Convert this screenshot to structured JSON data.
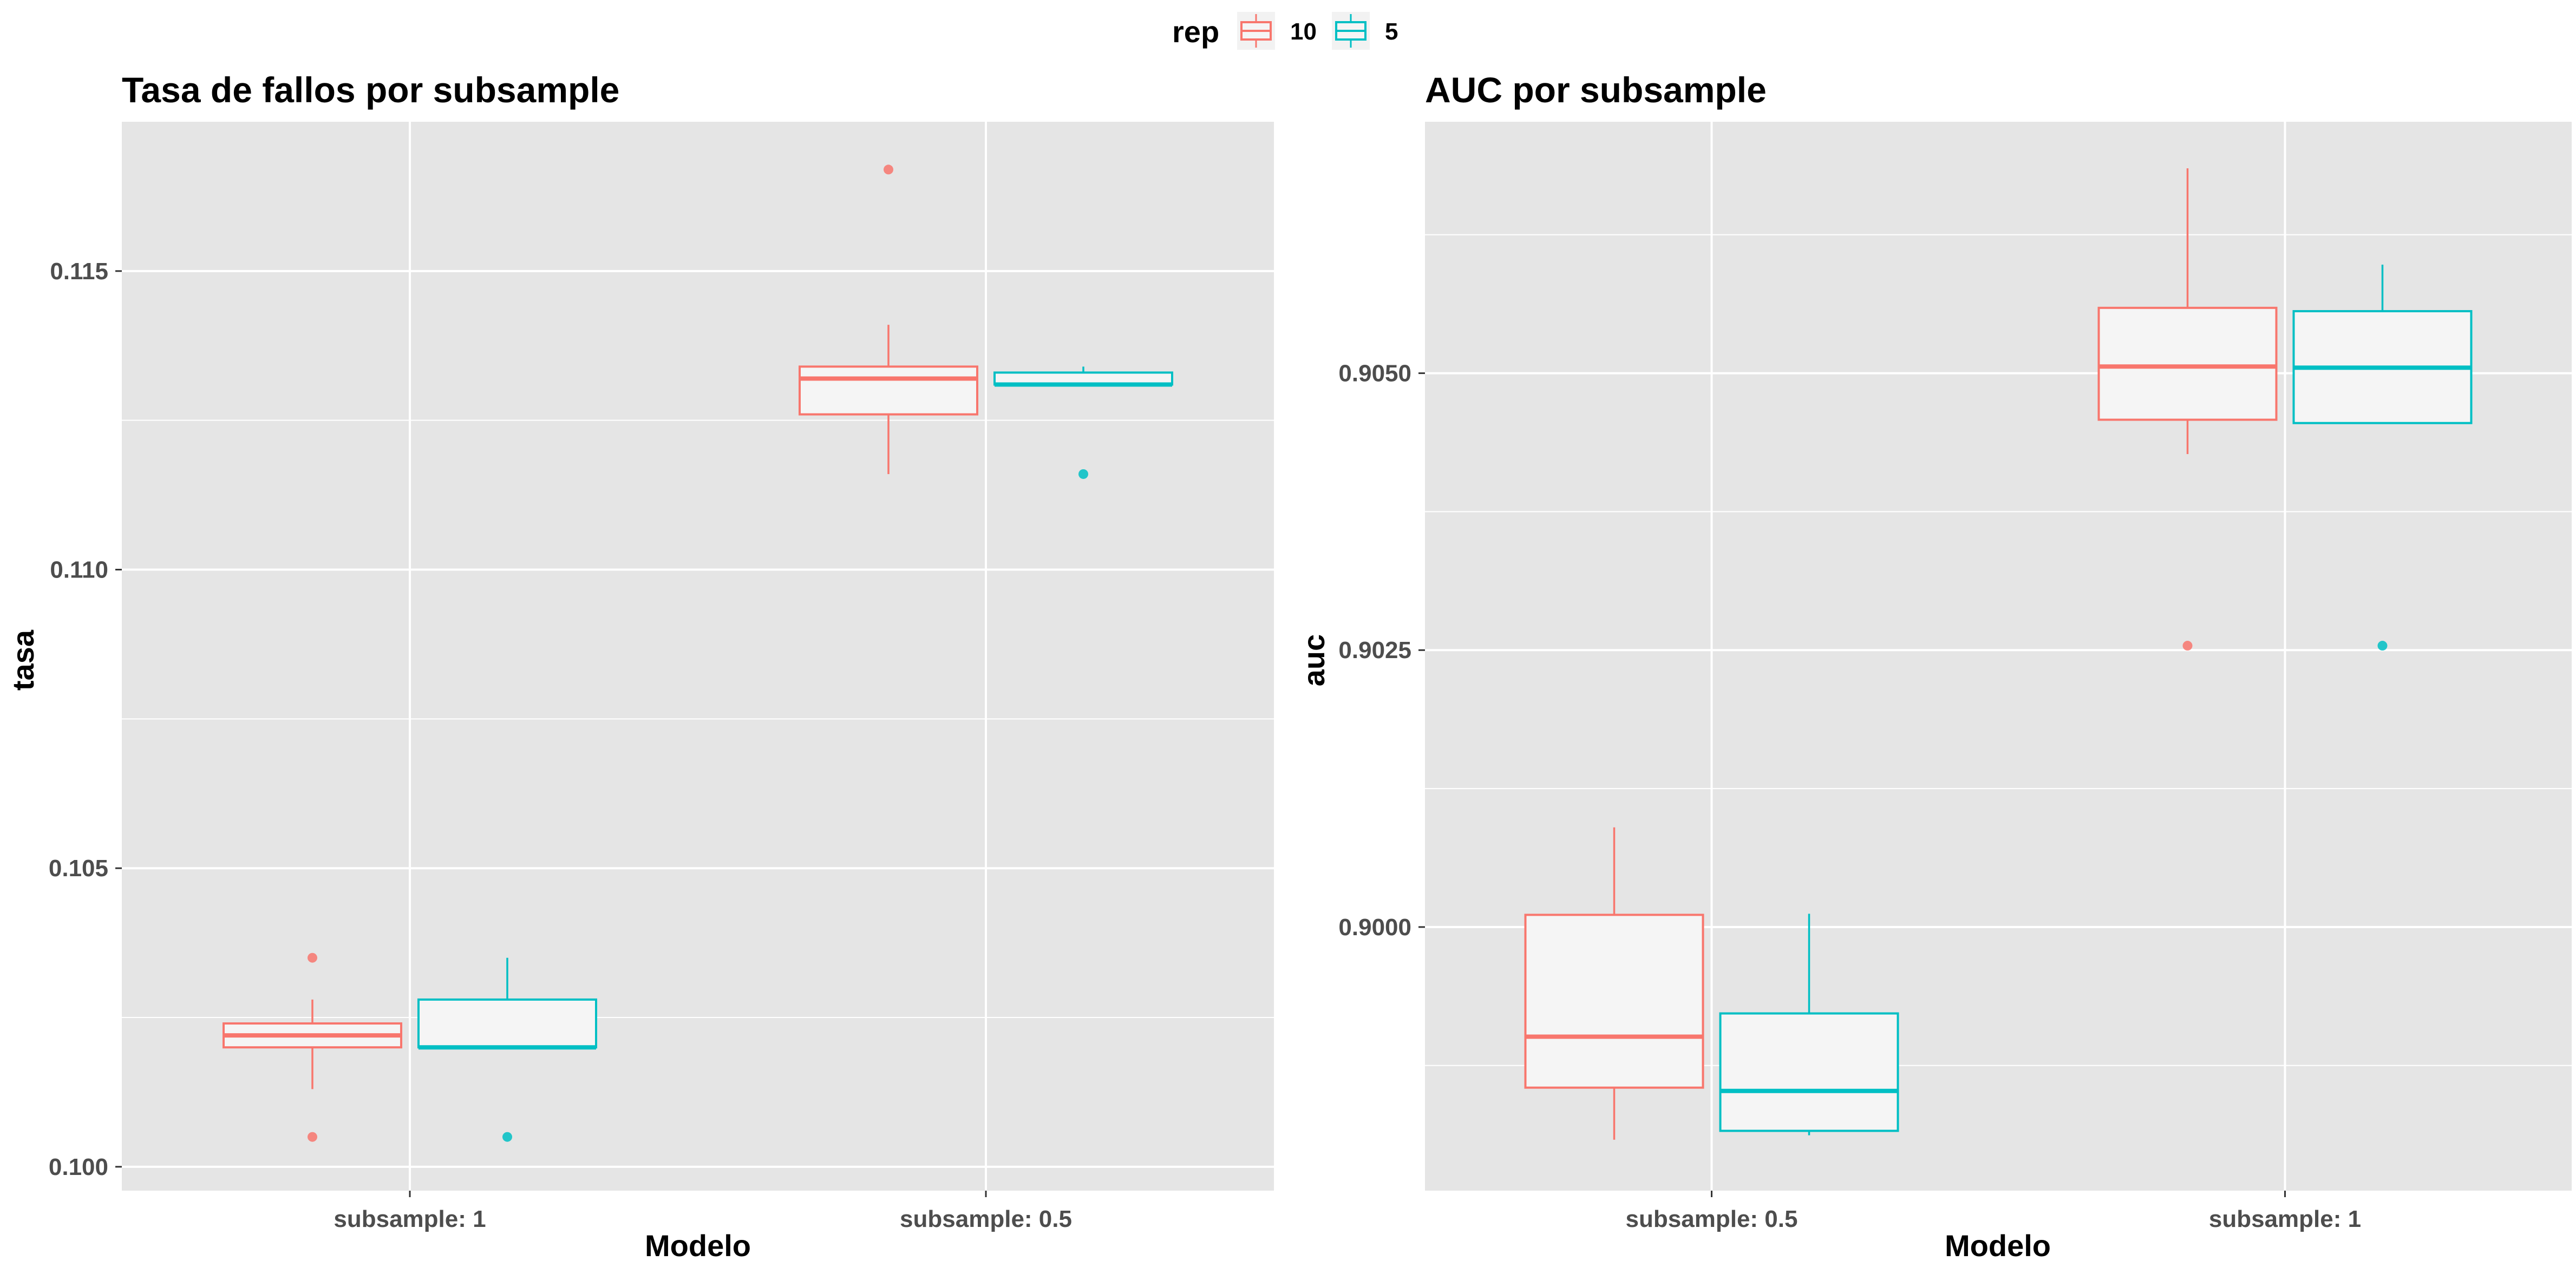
{
  "legend": {
    "title": "rep",
    "entries": [
      {
        "label": "10",
        "color": "#F8766D"
      },
      {
        "label": "5",
        "color": "#00BFC4"
      }
    ],
    "placement": "top-center"
  },
  "colors": {
    "panel_bg": "#E5E5E5",
    "grid": "#FFFFFF",
    "box_fill": "#F5F5F5",
    "tick_text": "#4D4D4D"
  },
  "chart_data": [
    {
      "type": "boxplot",
      "title": "Tasa de fallos por subsample",
      "xlabel": "Modelo",
      "ylabel": "tasa",
      "categories": [
        "subsample: 1",
        "subsample: 0.5"
      ],
      "ylim": [
        0.0996,
        0.1175
      ],
      "yticks": [
        0.1,
        0.105,
        0.11,
        0.115
      ],
      "ytick_labels": [
        "0.100",
        "0.105",
        "0.110",
        "0.115"
      ],
      "grid": true,
      "series": [
        {
          "name": "10",
          "color": "#F8766D",
          "boxes": [
            {
              "category": "subsample: 1",
              "lower": 0.1013,
              "q1": 0.102,
              "median": 0.1022,
              "q3": 0.1024,
              "upper": 0.1028,
              "outliers": [
                0.1035,
                0.1005
              ]
            },
            {
              "category": "subsample: 0.5",
              "lower": 0.1116,
              "q1": 0.1126,
              "median": 0.1132,
              "q3": 0.1134,
              "upper": 0.1141,
              "outliers": [
                0.1167
              ]
            }
          ]
        },
        {
          "name": "5",
          "color": "#00BFC4",
          "boxes": [
            {
              "category": "subsample: 1",
              "lower": 0.102,
              "q1": 0.102,
              "median": 0.102,
              "q3": 0.1028,
              "upper": 0.1035,
              "outliers": [
                0.1005
              ]
            },
            {
              "category": "subsample: 0.5",
              "lower": 0.1131,
              "q1": 0.1131,
              "median": 0.1131,
              "q3": 0.1133,
              "upper": 0.1134,
              "outliers": [
                0.1116
              ]
            }
          ]
        }
      ]
    },
    {
      "type": "boxplot",
      "title": "AUC por subsample",
      "xlabel": "Modelo",
      "ylabel": "auc",
      "categories": [
        "subsample: 0.5",
        "subsample: 1"
      ],
      "ylim": [
        0.89762,
        0.90727
      ],
      "yticks": [
        0.9,
        0.9025,
        0.905
      ],
      "ytick_labels": [
        "0.9000",
        "0.9025",
        "0.9050"
      ],
      "grid": true,
      "series": [
        {
          "name": "10",
          "color": "#F8766D",
          "boxes": [
            {
              "category": "subsample: 0.5",
              "lower": 0.89808,
              "q1": 0.89855,
              "median": 0.89901,
              "q3": 0.90011,
              "upper": 0.9009,
              "outliers": []
            },
            {
              "category": "subsample: 1",
              "lower": 0.90427,
              "q1": 0.90458,
              "median": 0.90506,
              "q3": 0.90559,
              "upper": 0.90685,
              "outliers": [
                0.90254
              ]
            }
          ]
        },
        {
          "name": "5",
          "color": "#00BFC4",
          "boxes": [
            {
              "category": "subsample: 0.5",
              "lower": 0.89812,
              "q1": 0.89816,
              "median": 0.89852,
              "q3": 0.89922,
              "upper": 0.90012,
              "outliers": []
            },
            {
              "category": "subsample: 1",
              "lower": 0.90455,
              "q1": 0.90455,
              "median": 0.90505,
              "q3": 0.90556,
              "upper": 0.90598,
              "outliers": [
                0.90254
              ]
            }
          ]
        }
      ]
    }
  ]
}
